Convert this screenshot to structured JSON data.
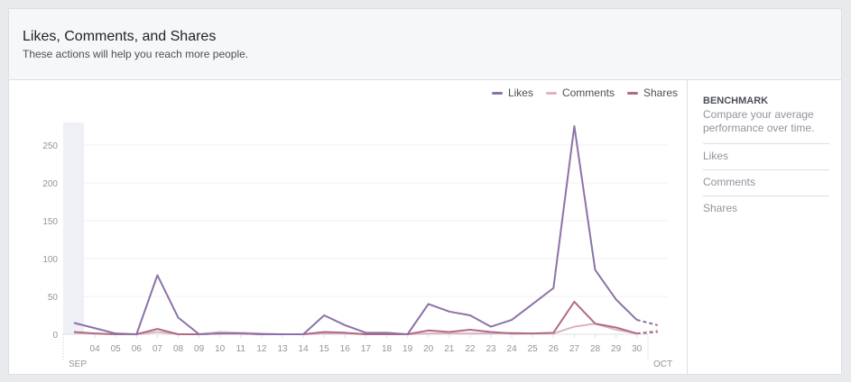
{
  "header": {
    "title": "Likes, Comments, and Shares",
    "subtitle": "These actions will help you reach more people."
  },
  "sidebar": {
    "heading": "BENCHMARK",
    "description": "Compare your average performance over time.",
    "items": [
      {
        "label": "Likes"
      },
      {
        "label": "Comments"
      },
      {
        "label": "Shares"
      }
    ]
  },
  "chart_data": {
    "type": "line",
    "title": "",
    "xlabel": "",
    "ylabel": "",
    "ylim": [
      0,
      275
    ],
    "yticks": [
      0,
      50,
      100,
      150,
      200,
      250
    ],
    "grid": true,
    "legend": "top-right",
    "x": [
      "03",
      "04",
      "05",
      "06",
      "07",
      "08",
      "09",
      "10",
      "11",
      "12",
      "13",
      "14",
      "15",
      "16",
      "17",
      "18",
      "19",
      "20",
      "21",
      "22",
      "23",
      "24",
      "25",
      "26",
      "27",
      "28",
      "29",
      "30",
      "01"
    ],
    "month_labels": [
      {
        "label": "SEP",
        "at": "03"
      },
      {
        "label": "OCT",
        "at": "01"
      }
    ],
    "x_tick_labels": [
      "04",
      "05",
      "06",
      "07",
      "08",
      "09",
      "10",
      "11",
      "12",
      "13",
      "14",
      "15",
      "16",
      "17",
      "18",
      "19",
      "20",
      "21",
      "22",
      "23",
      "24",
      "25",
      "26",
      "27",
      "28",
      "29",
      "30"
    ],
    "partial_last_point": true,
    "series": [
      {
        "name": "Likes",
        "color": "#8c72a8",
        "values": [
          15,
          8,
          1,
          0,
          78,
          22,
          0,
          1,
          1,
          0,
          0,
          0,
          25,
          12,
          2,
          2,
          0,
          40,
          30,
          25,
          10,
          19,
          40,
          61,
          275,
          85,
          46,
          19,
          12
        ]
      },
      {
        "name": "Comments",
        "color": "#dcb4c4",
        "values": [
          2,
          1,
          0,
          0,
          3,
          0,
          0,
          3,
          2,
          1,
          0,
          0,
          1,
          1,
          0,
          1,
          0,
          1,
          1,
          1,
          1,
          2,
          1,
          1,
          10,
          14,
          6,
          1,
          5
        ]
      },
      {
        "name": "Shares",
        "color": "#b06a86",
        "values": [
          3,
          1,
          0,
          0,
          7,
          0,
          0,
          1,
          1,
          0,
          0,
          0,
          3,
          2,
          0,
          0,
          0,
          5,
          3,
          6,
          3,
          1,
          1,
          2,
          43,
          14,
          9,
          1,
          3
        ]
      }
    ]
  }
}
